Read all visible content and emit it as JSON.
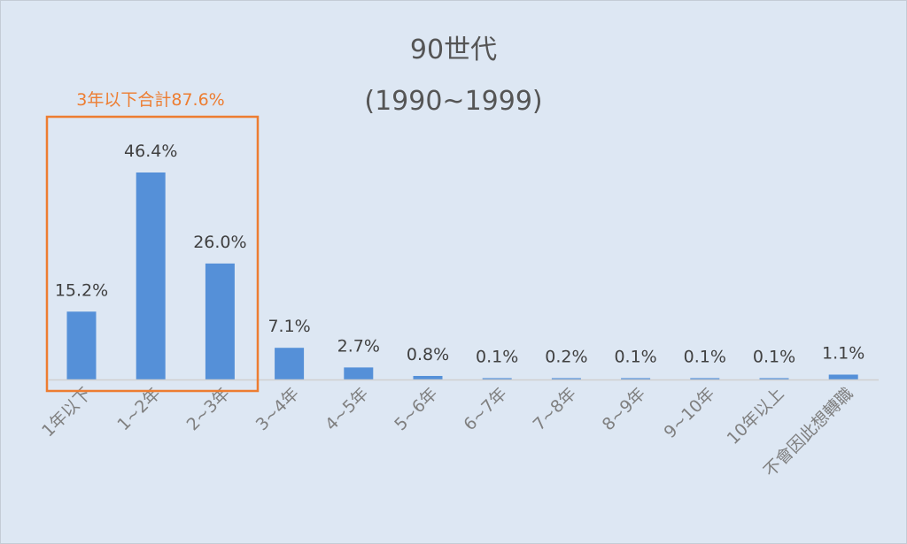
{
  "chart_data": {
    "type": "bar",
    "title": "90世代",
    "subtitle": "(1990~1999)",
    "categories": [
      "1年以下",
      "1~2年",
      "2~3年",
      "3~4年",
      "4~5年",
      "5~6年",
      "6~7年",
      "7~8年",
      "8~9年",
      "9~10年",
      "10年以上",
      "不會因此想轉職"
    ],
    "values": [
      15.2,
      46.4,
      26.0,
      7.1,
      2.7,
      0.8,
      0.1,
      0.2,
      0.1,
      0.1,
      0.1,
      1.1
    ],
    "data_labels": [
      "15.2%",
      "46.4%",
      "26.0%",
      "7.1%",
      "2.7%",
      "0.8%",
      "0.1%",
      "0.2%",
      "0.1%",
      "0.1%",
      "0.1%",
      "1.1%"
    ],
    "ylim": [
      0,
      46.4
    ],
    "grid": false,
    "annotation": {
      "text": "3年以下合計87.6%",
      "covers_categories": [
        "1年以下",
        "1~2年",
        "2~3年"
      ]
    },
    "colors": {
      "bar": "#5590d8",
      "annotation": "#ed7d31",
      "background": "#dde7f3"
    }
  }
}
